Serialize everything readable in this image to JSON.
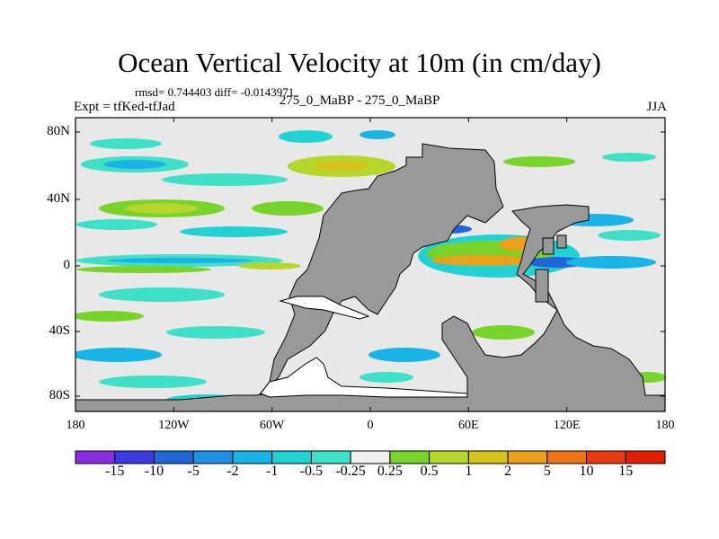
{
  "title": "Ocean Vertical Velocity at 10m (in cm/day)",
  "stats_line": "rmsd= 0.744403 diff= -0.0143971",
  "experiment_label": "Expt = tfKed-tfJad",
  "case_label": "275_0_MaBP - 275_0_MaBP",
  "season_label": "JJA",
  "lat_labels": [
    "80N",
    "40N",
    "0",
    "40S",
    "80S"
  ],
  "lon_labels": [
    "180",
    "120W",
    "60W",
    "0",
    "60E",
    "120E",
    "180"
  ],
  "colorbar": {
    "labels": [
      "-15",
      "-10",
      "-5",
      "-2",
      "-1",
      "-0.5",
      "-0.25",
      "0.25",
      "0.5",
      "1",
      "2",
      "5",
      "10",
      "15"
    ],
    "colors": [
      "#8a2be2",
      "#3c3ce0",
      "#2166d6",
      "#1e90e6",
      "#19b4e6",
      "#22d2d2",
      "#3fe0c8",
      "#f0f0f0",
      "#7ad32a",
      "#b5d62a",
      "#d6c41c",
      "#e9a21a",
      "#ee7416",
      "#e83c12",
      "#e02008"
    ]
  },
  "colors": {
    "land": "#999999",
    "ocean_background": "#e8e8e8",
    "coastline": "#000000"
  }
}
